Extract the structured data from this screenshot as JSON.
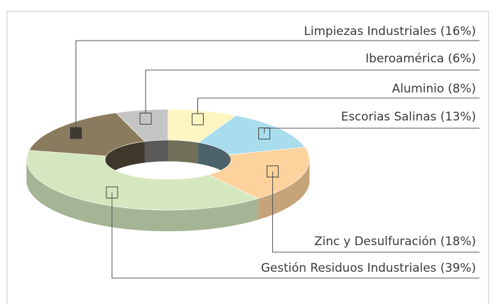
{
  "chart_data": {
    "type": "pie",
    "style": "3d-donut",
    "categories": [
      "Aluminio",
      "Escorias Salinas",
      "Zinc y Desulfuración",
      "Gestión Residuos Industriales",
      "Limpiezas Industriales",
      "Iberoamérica"
    ],
    "values": [
      8,
      13,
      18,
      39,
      16,
      6
    ],
    "value_labels": [
      "(8%)",
      "(13%)",
      "(18%)",
      "(39%)",
      "(16%)",
      "(6%)"
    ],
    "colors": [
      "#fdf6c3",
      "#a9dced",
      "#fdd29c",
      "#d4e7be",
      "#8b7b5e",
      "#c5c5c5"
    ]
  }
}
